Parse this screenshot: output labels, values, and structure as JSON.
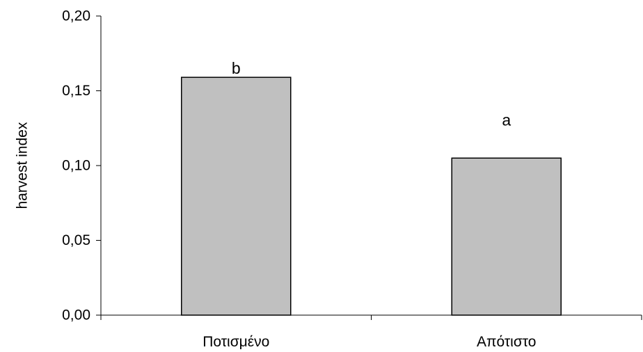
{
  "chart_data": {
    "type": "bar",
    "categories": [
      "Ποτισμένο",
      "Απότιστο"
    ],
    "values": [
      0.159,
      0.105
    ],
    "annotations": [
      "b",
      "a"
    ],
    "title": "",
    "xlabel": "",
    "ylabel": "harvest index",
    "ylim": [
      0,
      0.2
    ],
    "yticks": [
      0.0,
      0.05,
      0.1,
      0.15,
      0.2
    ],
    "ytick_labels": [
      "0,00",
      "0,05",
      "0,10",
      "0,15",
      "0,20"
    ],
    "grid": false,
    "legend": "none",
    "colors": {
      "bar_fill": "#c0c0c0",
      "bar_stroke": "#000000",
      "axis": "#000000"
    }
  }
}
